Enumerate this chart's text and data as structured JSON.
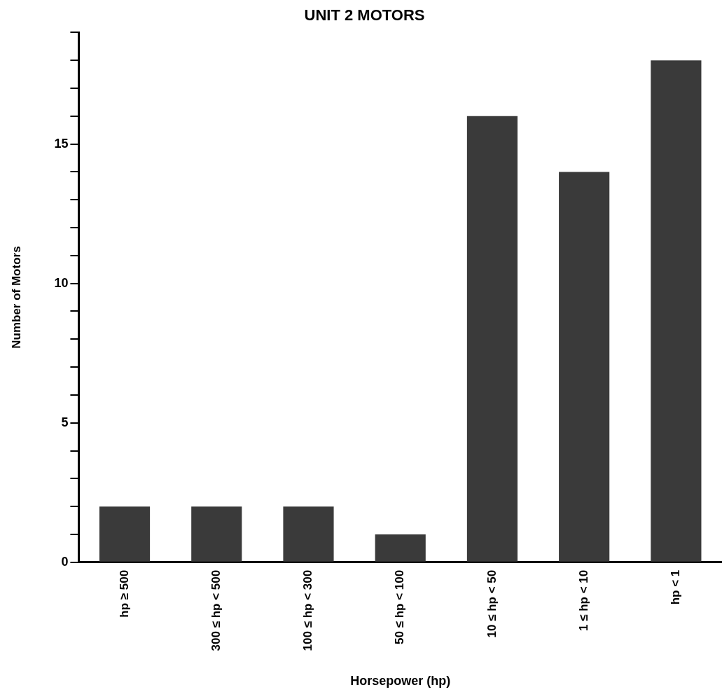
{
  "chart_data": {
    "type": "bar",
    "title": "UNIT 2 MOTORS",
    "xlabel": "Horsepower (hp)",
    "ylabel": "Number of Motors",
    "categories": [
      "hp ≥ 500",
      "300 ≤ hp < 500",
      "100 ≤ hp < 300",
      "50 ≤ hp < 100",
      "10 ≤ hp < 50",
      "1 ≤ hp < 10",
      "hp < 1"
    ],
    "values": [
      2,
      2,
      2,
      1,
      16,
      14,
      18
    ],
    "color": "#3a3a3a",
    "ylim": [
      0,
      19
    ],
    "yticks": [
      0,
      {
        "value": 1,
        "label": null
      },
      {
        "value": 2,
        "label": null
      },
      {
        "value": 3,
        "label": null
      },
      {
        "value": 4,
        "label": null
      },
      5,
      {
        "value": 6,
        "label": null
      },
      {
        "value": 7,
        "label": null
      },
      {
        "value": 8,
        "label": null
      },
      {
        "value": 9,
        "label": null
      },
      10,
      {
        "value": 11,
        "label": null
      },
      {
        "value": 12,
        "label": null
      },
      {
        "value": 13,
        "label": null
      },
      {
        "value": 14,
        "label": null
      },
      15,
      {
        "value": 16,
        "label": null
      },
      {
        "value": 17,
        "label": null
      },
      {
        "value": 18,
        "label": null
      },
      {
        "value": 19,
        "label": null
      }
    ],
    "grid": false,
    "legend": false
  }
}
